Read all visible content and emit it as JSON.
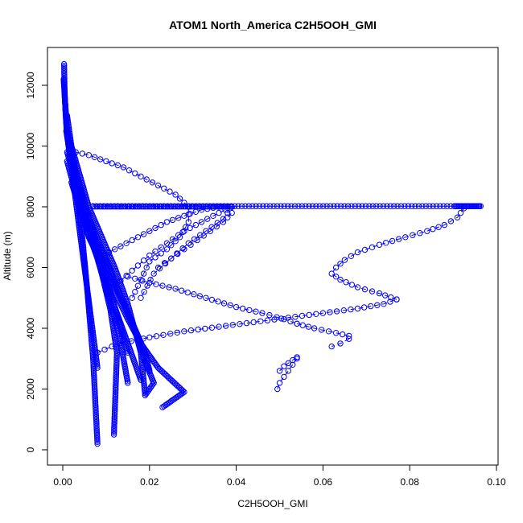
{
  "chart_data": {
    "type": "scatter",
    "title": "ATOM1 North_America C2H5OOH_GMI",
    "xlabel": "C2H5OOH_GMI",
    "ylabel": "Altitude (m)",
    "xlim": [
      0.0,
      0.1
    ],
    "ylim": [
      0,
      12800
    ],
    "xticks": [
      "0.00",
      "0.02",
      "0.04",
      "0.06",
      "0.08",
      "0.10"
    ],
    "xtick_values": [
      0.0,
      0.02,
      0.04,
      0.06,
      0.08,
      0.1
    ],
    "yticks": [
      "0",
      "2000",
      "4000",
      "6000",
      "8000",
      "10000",
      "12000"
    ],
    "ytick_values": [
      0,
      2000,
      4000,
      6000,
      8000,
      10000,
      12000
    ],
    "marker": "open-circle",
    "color": "#0000ff",
    "series": [
      {
        "profiles": [
          {
            "x": [
              0.0003,
              0.0004,
              0.0006,
              0.0009,
              0.0015,
              0.0025,
              0.0035,
              0.0045,
              0.0055,
              0.007,
              0.008
            ],
            "y": [
              12700,
              12000,
              11200,
              10500,
              9800,
              9000,
              8200,
              7000,
              5500,
              3000,
              200
            ]
          },
          {
            "x": [
              0.0002,
              0.0005,
              0.001,
              0.002,
              0.003,
              0.005,
              0.007,
              0.009,
              0.011,
              0.013,
              0.014,
              0.015
            ],
            "y": [
              12200,
              11500,
              10600,
              9600,
              8700,
              7800,
              6800,
              5800,
              4800,
              3800,
              3000,
              2200
            ]
          },
          {
            "x": [
              0.0004,
              0.0008,
              0.0015,
              0.003,
              0.005,
              0.007,
              0.009,
              0.011,
              0.0125,
              0.0118
            ],
            "y": [
              11800,
              10800,
              9800,
              8800,
              7800,
              6800,
              5800,
              4600,
              3200,
              500
            ]
          },
          {
            "x": [
              0.001,
              0.002,
              0.004,
              0.006,
              0.009,
              0.012,
              0.015,
              0.018,
              0.019
            ],
            "y": [
              11000,
              10000,
              9000,
              8000,
              7000,
              6000,
              4800,
              3200,
              1800
            ]
          },
          {
            "x": [
              0.0008,
              0.002,
              0.004,
              0.007,
              0.01,
              0.013,
              0.016,
              0.019,
              0.02
            ],
            "y": [
              10500,
              9400,
              8400,
              7300,
              6200,
              5200,
              4200,
              3200,
              2600
            ]
          },
          {
            "x": [
              0.0005,
              0.001,
              0.002,
              0.003,
              0.004,
              0.005,
              0.006,
              0.007,
              0.008
            ],
            "y": [
              11500,
              10400,
              9300,
              8200,
              7100,
              6000,
              4900,
              3800,
              2700
            ]
          },
          {
            "x": [
              0.001,
              0.003,
              0.005,
              0.008,
              0.011,
              0.014,
              0.017,
              0.019,
              0.021,
              0.019
            ],
            "y": [
              9800,
              8800,
              7800,
              6800,
              5800,
              4800,
              3800,
              2900,
              2200,
              1800
            ]
          },
          {
            "x": [
              0.002,
              0.004,
              0.006,
              0.009,
              0.012,
              0.015,
              0.018,
              0.022,
              0.025,
              0.028,
              0.023
            ],
            "y": [
              8800,
              7900,
              7000,
              6100,
              5200,
              4300,
              3500,
              2700,
              2300,
              1900,
              1400
            ]
          },
          {
            "x": [
              0.0015,
              0.003,
              0.005,
              0.007,
              0.009,
              0.011,
              0.013,
              0.015
            ],
            "y": [
              10200,
              9200,
              8200,
              7200,
              6200,
              5200,
              4200,
              3200
            ]
          },
          {
            "x": [
              0.001,
              0.0025,
              0.004,
              0.006,
              0.008,
              0.01,
              0.012,
              0.014,
              0.016,
              0.018
            ],
            "y": [
              9500,
              8700,
              7900,
              7100,
              6300,
              5500,
              4700,
              3900,
              3100,
              2300
            ]
          }
        ]
      },
      {
        "excursions": [
          {
            "x": [
              0.003,
              0.006,
              0.01,
              0.014,
              0.018,
              0.022,
              0.026,
              0.029,
              0.029,
              0.027,
              0.024,
              0.02,
              0.018,
              0.016
            ],
            "y": [
              9800,
              9700,
              9500,
              9300,
              9000,
              8700,
              8400,
              8000,
              7500,
              7000,
              6600,
              6200,
              5600,
              5000
            ]
          },
          {
            "x": [
              0.008,
              0.012,
              0.016,
              0.02,
              0.024,
              0.028,
              0.032,
              0.036,
              0.039,
              0.039,
              0.037,
              0.034,
              0.031,
              0.028,
              0.025,
              0.022
            ],
            "y": [
              6300,
              6600,
              6900,
              7200,
              7500,
              7700,
              7900,
              8000,
              8000,
              7800,
              7500,
              7200,
              6900,
              6600,
              6300,
              6000
            ]
          },
          {
            "x": [
              0.012,
              0.016,
              0.02,
              0.024,
              0.028,
              0.032,
              0.036,
              0.039,
              0.037,
              0.033,
              0.029,
              0.025,
              0.021,
              0.018
            ],
            "y": [
              5400,
              5900,
              6400,
              6800,
              7200,
              7500,
              7800,
              8000,
              7600,
              7200,
              6800,
              6300,
              5800,
              5000
            ]
          },
          {
            "x": [
              0.015,
              0.02,
              0.026,
              0.033,
              0.04,
              0.046,
              0.051,
              0.054
            ],
            "y": [
              5700,
              5500,
              5300,
              5000,
              4700,
              4500,
              4300,
              4150
            ]
          },
          {
            "x": [
              0.054,
              0.058,
              0.063,
              0.066,
              0.066,
              0.064,
              0.062
            ],
            "y": [
              4150,
              4000,
              3850,
              3750,
              3650,
              3500,
              3400
            ]
          },
          {
            "x": [
              0.008,
              0.013,
              0.02,
              0.028,
              0.036,
              0.044,
              0.052,
              0.06,
              0.068,
              0.074,
              0.077
            ],
            "y": [
              3200,
              3500,
              3700,
              3900,
              4050,
              4200,
              4350,
              4500,
              4650,
              4800,
              4950
            ]
          },
          {
            "x": [
              0.077,
              0.073,
              0.068,
              0.064,
              0.062,
              0.063,
              0.065,
              0.068,
              0.073,
              0.079,
              0.084,
              0.088,
              0.091,
              0.0925
            ],
            "y": [
              4950,
              5150,
              5350,
              5600,
              5800,
              6000,
              6250,
              6500,
              6750,
              7000,
              7200,
              7400,
              7650,
              7950
            ]
          },
          {
            "x": [
              0.05,
              0.051,
              0.052,
              0.053,
              0.054
            ],
            "y": [
              2600,
              2750,
              2850,
              2950,
              3050
            ]
          },
          {
            "x": [
              0.0495,
              0.05,
              0.051,
              0.052,
              0.053,
              0.054
            ],
            "y": [
              2000,
              2200,
              2400,
              2600,
              2800,
              3000
            ]
          }
        ]
      },
      {
        "leg_8000m": {
          "x_start": 0.007,
          "x_end": 0.0965,
          "y": 8020
        }
      }
    ]
  }
}
